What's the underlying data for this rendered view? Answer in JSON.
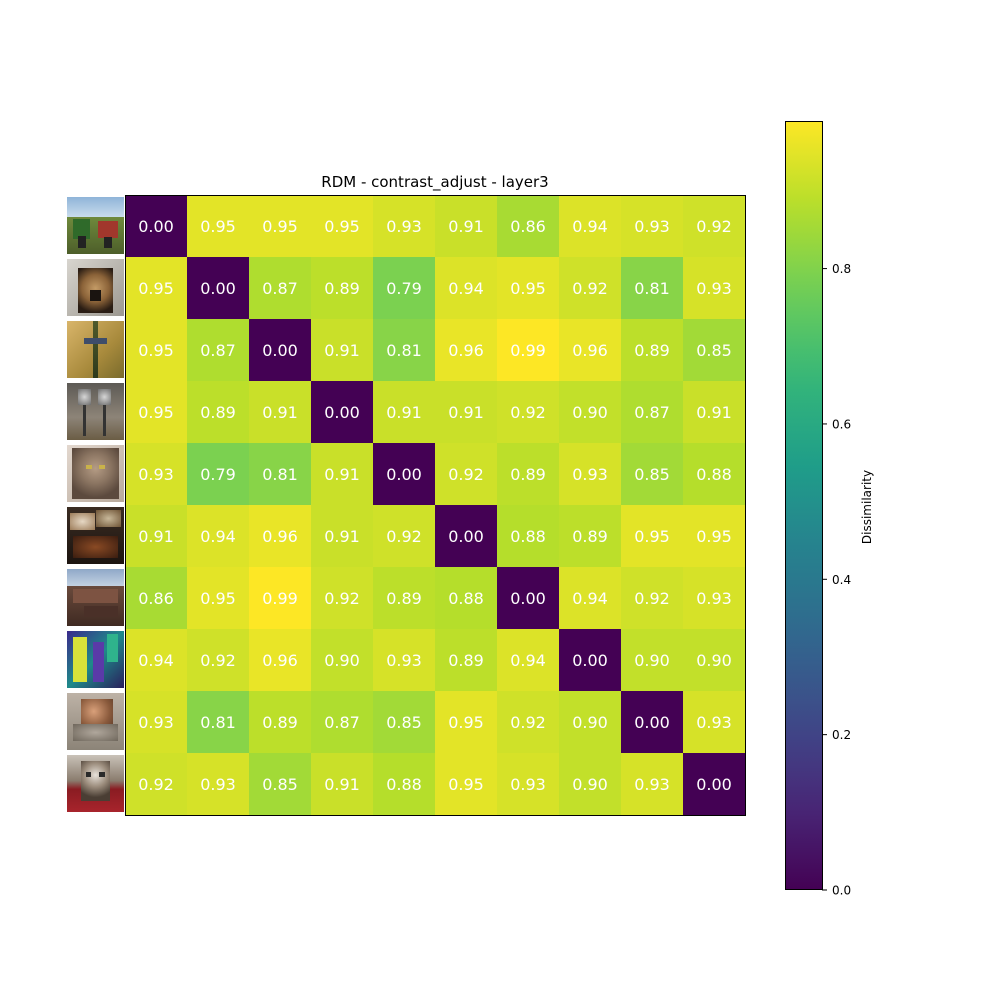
{
  "chart_data": {
    "type": "heatmap",
    "title": "RDM - contrast_adjust - layer3",
    "colorbar_label": "Dissimilarity",
    "colormap": "viridis",
    "vmin": 0.0,
    "vmax": 0.99,
    "colorbar_ticks": [
      "0.0",
      "0.2",
      "0.4",
      "0.6",
      "0.8"
    ],
    "colorbar_tick_values": [
      0.0,
      0.2,
      0.4,
      0.6,
      0.8
    ],
    "row_labels_are_images": true,
    "row_images": [
      "tractor-field-photo",
      "german-shepherd-photo",
      "dragonfly-on-stem-photo",
      "parking-meters-photo",
      "fluffy-cat-photo",
      "food-table-photo",
      "rusty-machinery-photo",
      "colorful-building-photo",
      "snail-photo",
      "kitten-on-red-carpet-photo"
    ],
    "matrix": [
      [
        0.0,
        0.95,
        0.95,
        0.95,
        0.93,
        0.91,
        0.86,
        0.94,
        0.93,
        0.92
      ],
      [
        0.95,
        0.0,
        0.87,
        0.89,
        0.79,
        0.94,
        0.95,
        0.92,
        0.81,
        0.93
      ],
      [
        0.95,
        0.87,
        0.0,
        0.91,
        0.81,
        0.96,
        0.99,
        0.96,
        0.89,
        0.85
      ],
      [
        0.95,
        0.89,
        0.91,
        0.0,
        0.91,
        0.91,
        0.92,
        0.9,
        0.87,
        0.91
      ],
      [
        0.93,
        0.79,
        0.81,
        0.91,
        0.0,
        0.92,
        0.89,
        0.93,
        0.85,
        0.88
      ],
      [
        0.91,
        0.94,
        0.96,
        0.91,
        0.92,
        0.0,
        0.88,
        0.89,
        0.95,
        0.95
      ],
      [
        0.86,
        0.95,
        0.99,
        0.92,
        0.89,
        0.88,
        0.0,
        0.94,
        0.92,
        0.93
      ],
      [
        0.94,
        0.92,
        0.96,
        0.9,
        0.93,
        0.89,
        0.94,
        0.0,
        0.9,
        0.9
      ],
      [
        0.93,
        0.81,
        0.89,
        0.87,
        0.85,
        0.95,
        0.92,
        0.9,
        0.0,
        0.93
      ],
      [
        0.92,
        0.93,
        0.85,
        0.91,
        0.88,
        0.95,
        0.93,
        0.9,
        0.93,
        0.0
      ]
    ]
  }
}
